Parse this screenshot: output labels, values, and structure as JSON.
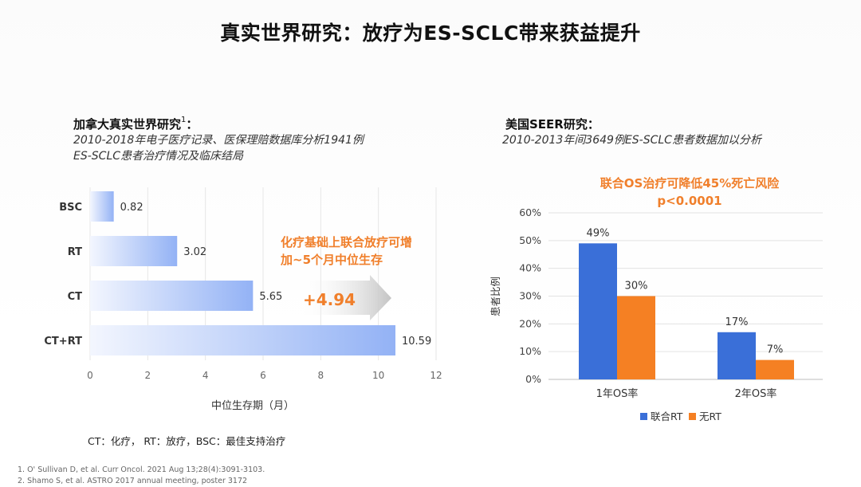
{
  "slide": {
    "title": "真实世界研究：放疗为ES-SCLC带来获益提升"
  },
  "left": {
    "heading": "加拿大真实世界研究",
    "heading_sup": "1",
    "heading_colon": "：",
    "sub_line1": "2010-2018年电子医疗记录、医保理赔数据库分析1941例",
    "sub_line2": "ES-SCLC患者治疗情况及临床结局",
    "callout_line1": "化疗基础上联合放疗可增",
    "callout_line2": "加~5个月中位生存",
    "arrow_label": "+4.94",
    "abbr_note": "CT：化疗， RT：放疗，BSC：最佳支持治疗"
  },
  "right": {
    "heading": "美国SEER研究：",
    "sub_line1": "2010-2013年间3649例ES-SCLC患者数据加以分析",
    "callout_line1": "联合OS治疗可降低45%死亡风险",
    "callout_line2": "p<0.0001"
  },
  "refs": [
    "1.   O' Sullivan D, et al. Curr Oncol. 2021 Aug 13;28(4):3091-3103.",
    "2.   Shamo S, et al. ASTRO 2017 annual meeting, poster 3172"
  ],
  "colors": {
    "bar_blue": "#3a6fd8",
    "bar_orange": "#f58023",
    "accent_orange": "#f07f2b"
  },
  "chart_data": [
    {
      "type": "bar",
      "orientation": "horizontal",
      "categories": [
        "BSC",
        "RT",
        "CT",
        "CT+RT"
      ],
      "values": [
        0.82,
        3.02,
        5.65,
        10.59
      ],
      "value_labels": [
        "0.82",
        "3.02",
        "5.65",
        "10.59"
      ],
      "xlabel": "中位生存期（月）",
      "ylabel": "",
      "xlim": [
        0,
        12
      ],
      "xticks": [
        "0",
        "2",
        "4",
        "6",
        "8",
        "10",
        "12"
      ],
      "grid": true,
      "legend": "none"
    },
    {
      "type": "bar",
      "orientation": "vertical",
      "categories": [
        "1年OS率",
        "2年OS率"
      ],
      "series": [
        {
          "name": "联合RT",
          "values": [
            49,
            17
          ],
          "labels": [
            "49%",
            "17%"
          ],
          "color": "#3a6fd8"
        },
        {
          "name": "无RT",
          "values": [
            30,
            7
          ],
          "labels": [
            "30%",
            "7%"
          ],
          "color": "#f58023"
        }
      ],
      "ylabel": "患者比例",
      "xlabel": "",
      "ylim": [
        0,
        60
      ],
      "yticks": [
        "0%",
        "10%",
        "20%",
        "30%",
        "40%",
        "50%",
        "60%"
      ],
      "grid": true,
      "legend": "bottom"
    }
  ]
}
